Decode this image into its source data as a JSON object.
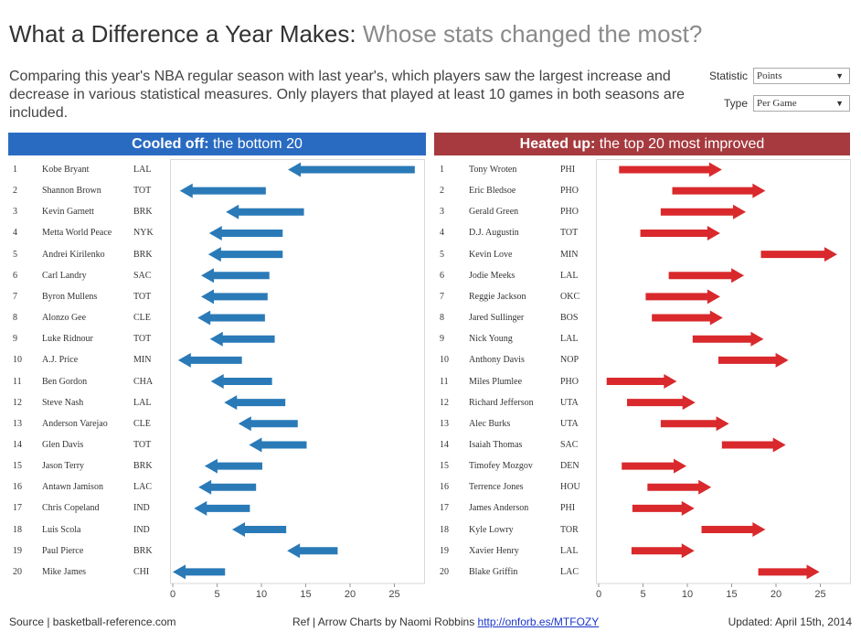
{
  "header": {
    "title_main": "What a Difference a Year Makes:",
    "title_sub": "Whose stats changed the most?",
    "description": "Comparing this year's NBA regular season with last year's, which players saw the largest increase and decrease in various statistical measures. Only players that played at least 10 games in both seasons are included."
  },
  "filters": {
    "statistic_label": "Statistic",
    "statistic_value": "Points",
    "type_label": "Type",
    "type_value": "Per Game"
  },
  "panels": {
    "left_bold": "Cooled off:",
    "left_rest": "the bottom 20",
    "right_bold": "Heated up:",
    "right_rest": "the top 20 most improved"
  },
  "footer": {
    "source": "Source | basketball-reference.com",
    "ref_text": "Ref | Arrow Charts by Naomi Robbins",
    "ref_link": "http://onforb.es/MTFOZY",
    "updated": "Updated: April 15th, 2014"
  },
  "colors": {
    "cooled": "#2a7ab8",
    "heated": "#d9292c",
    "cooled_header": "#2a6bc2",
    "heated_header": "#a63a3f"
  },
  "chart_data": [
    {
      "type": "arrow",
      "name": "Cooled off",
      "xlim": [
        0,
        28
      ],
      "xticks": [
        0,
        5,
        10,
        15,
        20,
        25
      ],
      "rows": [
        {
          "rank": "1",
          "player": "Kobe Bryant",
          "team": "LAL",
          "from": 27.3,
          "to": 13.0
        },
        {
          "rank": "2",
          "player": "Shannon Brown",
          "team": "TOT",
          "from": 10.5,
          "to": 0.8
        },
        {
          "rank": "3",
          "player": "Kevin Garnett",
          "team": "BRK",
          "from": 14.8,
          "to": 6.0
        },
        {
          "rank": "4",
          "player": "Metta World Peace",
          "team": "NYK",
          "from": 12.4,
          "to": 4.1
        },
        {
          "rank": "5",
          "player": "Andrei Kirilenko",
          "team": "BRK",
          "from": 12.4,
          "to": 4.0
        },
        {
          "rank": "6",
          "player": "Carl Landry",
          "team": "SAC",
          "from": 10.9,
          "to": 3.2
        },
        {
          "rank": "7",
          "player": "Byron Mullens",
          "team": "TOT",
          "from": 10.7,
          "to": 3.2
        },
        {
          "rank": "8",
          "player": "Alonzo Gee",
          "team": "CLE",
          "from": 10.4,
          "to": 2.8
        },
        {
          "rank": "9",
          "player": "Luke Ridnour",
          "team": "TOT",
          "from": 11.5,
          "to": 4.2
        },
        {
          "rank": "10",
          "player": "A.J. Price",
          "team": "MIN",
          "from": 7.8,
          "to": 0.6
        },
        {
          "rank": "11",
          "player": "Ben Gordon",
          "team": "CHA",
          "from": 11.2,
          "to": 4.3
        },
        {
          "rank": "12",
          "player": "Steve Nash",
          "team": "LAL",
          "from": 12.7,
          "to": 5.8
        },
        {
          "rank": "13",
          "player": "Anderson Varejao",
          "team": "CLE",
          "from": 14.1,
          "to": 7.4
        },
        {
          "rank": "14",
          "player": "Glen Davis",
          "team": "TOT",
          "from": 15.1,
          "to": 8.6
        },
        {
          "rank": "15",
          "player": "Jason Terry",
          "team": "BRK",
          "from": 10.1,
          "to": 3.6
        },
        {
          "rank": "16",
          "player": "Antawn Jamison",
          "team": "LAC",
          "from": 9.4,
          "to": 2.9
        },
        {
          "rank": "17",
          "player": "Chris Copeland",
          "team": "IND",
          "from": 8.7,
          "to": 2.4
        },
        {
          "rank": "18",
          "player": "Luis Scola",
          "team": "IND",
          "from": 12.8,
          "to": 6.7
        },
        {
          "rank": "19",
          "player": "Paul Pierce",
          "team": "BRK",
          "from": 18.6,
          "to": 12.9
        },
        {
          "rank": "20",
          "player": "Mike James",
          "team": "CHI",
          "from": 5.9,
          "to": 0.0
        }
      ]
    },
    {
      "type": "arrow",
      "name": "Heated up",
      "xlim": [
        0,
        28
      ],
      "xticks": [
        0,
        5,
        10,
        15,
        20,
        25
      ],
      "rows": [
        {
          "rank": "1",
          "player": "Tony Wroten",
          "team": "PHI",
          "from": 2.3,
          "to": 13.9
        },
        {
          "rank": "2",
          "player": "Eric Bledsoe",
          "team": "PHO",
          "from": 8.3,
          "to": 18.8
        },
        {
          "rank": "3",
          "player": "Gerald Green",
          "team": "PHO",
          "from": 7.0,
          "to": 16.6
        },
        {
          "rank": "4",
          "player": "D.J. Augustin",
          "team": "TOT",
          "from": 4.7,
          "to": 13.7
        },
        {
          "rank": "5",
          "player": "Kevin Love",
          "team": "MIN",
          "from": 18.3,
          "to": 26.9
        },
        {
          "rank": "6",
          "player": "Jodie Meeks",
          "team": "LAL",
          "from": 7.9,
          "to": 16.4
        },
        {
          "rank": "7",
          "player": "Reggie Jackson",
          "team": "OKC",
          "from": 5.3,
          "to": 13.7
        },
        {
          "rank": "8",
          "player": "Jared Sullinger",
          "team": "BOS",
          "from": 6.0,
          "to": 14.0
        },
        {
          "rank": "9",
          "player": "Nick Young",
          "team": "LAL",
          "from": 10.6,
          "to": 18.6
        },
        {
          "rank": "10",
          "player": "Anthony Davis",
          "team": "NOP",
          "from": 13.5,
          "to": 21.4
        },
        {
          "rank": "11",
          "player": "Miles Plumlee",
          "team": "PHO",
          "from": 0.9,
          "to": 8.8
        },
        {
          "rank": "12",
          "player": "Richard Jefferson",
          "team": "UTA",
          "from": 3.2,
          "to": 10.9
        },
        {
          "rank": "13",
          "player": "Alec Burks",
          "team": "UTA",
          "from": 7.0,
          "to": 14.7
        },
        {
          "rank": "14",
          "player": "Isaiah Thomas",
          "team": "SAC",
          "from": 13.9,
          "to": 21.1
        },
        {
          "rank": "15",
          "player": "Timofey Mozgov",
          "team": "DEN",
          "from": 2.6,
          "to": 9.9
        },
        {
          "rank": "16",
          "player": "Terrence Jones",
          "team": "HOU",
          "from": 5.5,
          "to": 12.7
        },
        {
          "rank": "17",
          "player": "James Anderson",
          "team": "PHI",
          "from": 3.8,
          "to": 10.8
        },
        {
          "rank": "18",
          "player": "Kyle Lowry",
          "team": "TOR",
          "from": 11.6,
          "to": 18.8
        },
        {
          "rank": "19",
          "player": "Xavier Henry",
          "team": "LAL",
          "from": 3.7,
          "to": 10.8
        },
        {
          "rank": "20",
          "player": "Blake Griffin",
          "team": "LAC",
          "from": 18.0,
          "to": 24.9
        }
      ]
    }
  ]
}
